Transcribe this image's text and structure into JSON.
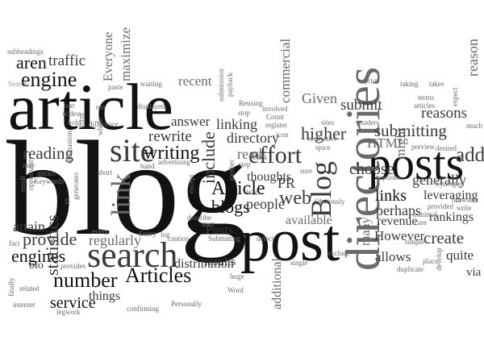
{
  "cloud": {
    "words": {
      "blog": "blog",
      "article": "article",
      "post": "post",
      "posts": "posts",
      "directories": "directories",
      "search": "search",
      "site": "site",
      "blog2": "Blog",
      "effort": "effort",
      "link": "link",
      "engine": "engine",
      "aren": "aren",
      "traffic": "traffic",
      "provide": "provide",
      "engines": "engines",
      "number": "number",
      "articles": "Articles",
      "statistics": "statistics",
      "service": "service",
      "attain": "attain",
      "reading": "reading",
      "writing": "writing",
      "rewrite": "rewrite",
      "answer": "answer",
      "include": "include",
      "article2": "Article",
      "blogs": "blogs",
      "people": "people",
      "web": "web",
      "pr": "PR",
      "available": "available",
      "thoughts": "thoughts",
      "read": "read",
      "directory": "directory",
      "linking": "linking",
      "commercial": "commercial",
      "given": "Given",
      "higher": "higher",
      "submit": "submit",
      "submitting": "submitting",
      "reasons": "reasons",
      "reason": "reason",
      "html": "HTML",
      "add": "add",
      "generally": "generally",
      "links": "links",
      "leveraging": "leveraging",
      "perhaps": "perhaps",
      "rankings": "rankings",
      "revenue": "revenue",
      "however": "However",
      "create": "create",
      "quite": "quite",
      "allows": "allows",
      "many": "many",
      "via": "via",
      "choose": "choose",
      "might": "might",
      "posts2": "Posts",
      "results": "results",
      "distribution": "distribution",
      "regularly": "regularly",
      "bio": "bio",
      "things": "things",
      "additional": "additional",
      "recent": "recent",
      "maximize": "maximize",
      "everyone": "Everyone"
    },
    "small_words": {
      "subheadings": "subheadings",
      "search_small": "Search",
      "text": "text",
      "widest": "widest",
      "bold": "bold",
      "form": "form",
      "whole": "whole",
      "paste": "paste",
      "waiting": "waiting",
      "displayed": "displayed",
      "difference": "difference",
      "hand": "hand",
      "advertising": "advertising",
      "short": "short",
      "every": "every",
      "everyday": "Every",
      "mechanism": "mechanism",
      "may": "may",
      "attract": "attract",
      "keywords": "Keywords",
      "result": "result",
      "opportunity": "opportunity",
      "generates": "generates",
      "vs": "vs",
      "fact": "fact",
      "finally": "finally",
      "related": "related",
      "provides": "provides",
      "legwork": "legwork",
      "internet": "internet",
      "confirming": "confirming",
      "personally": "Personally",
      "word": "Word",
      "huge": "huge",
      "caution": "caution",
      "submitting_small": "Submitting",
      "describe": "describe",
      "start": "start",
      "web_small": "Web",
      "another": "another",
      "step": "step",
      "stop": "stop",
      "click": "click",
      "reusing": "Reusing",
      "payback": "payback",
      "submission": "submission",
      "involved": "involved",
      "count": "Count",
      "register": "register",
      "icon": "icon",
      "detect": "detect",
      "obviously": "Obviously",
      "sure": "sure",
      "restrictive": "restrictive",
      "spice": "spice",
      "sites": "sites",
      "prior": "prior",
      "readers": "readers",
      "taking": "taking",
      "terms": "terms",
      "articles_small": "articles",
      "takes": "takes",
      "expect": "expect",
      "much": "much",
      "preview": "preview",
      "desired": "desired",
      "options": "options",
      "synergies": "Synergies",
      "write": "write",
      "browsers": "browsers",
      "provided": "provided",
      "minimal": "minimal",
      "care": "care",
      "simple": "simple",
      "duplicate": "duplicate",
      "place": "place",
      "develop": "develop",
      "exclude": "exclude",
      "single": "single",
      "ton": "ton",
      "log": "log",
      "except": "except"
    }
  },
  "colors": {
    "black": "#121212",
    "dark_grey": "#3a3a3a",
    "mid_grey": "#6a6a6a",
    "light_grey": "#9a9a9a",
    "background": "#ffffff"
  }
}
